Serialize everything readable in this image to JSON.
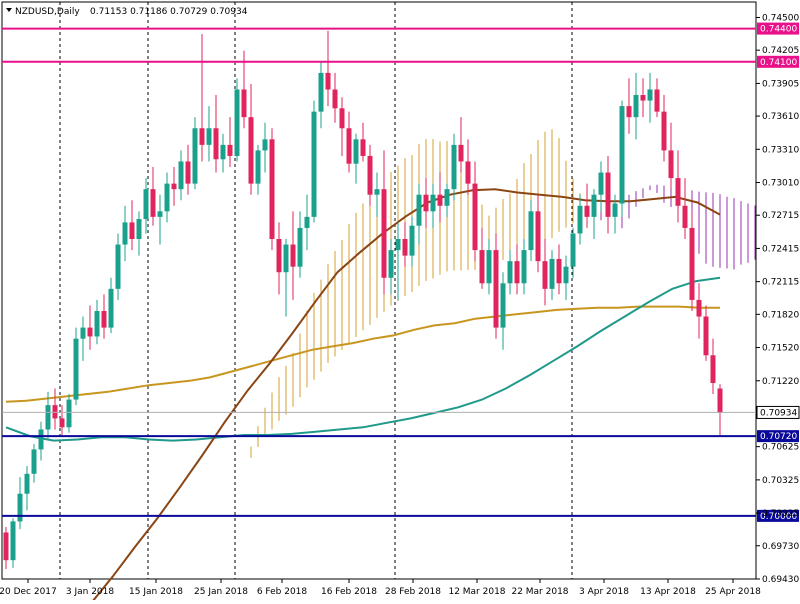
{
  "header": {
    "symbol_label": "NZDUSD,Daily",
    "ohlc": "0.71153 0.71186 0.70729 0.70934"
  },
  "colors": {
    "bull_candle": "#1aa08c",
    "bear_candle": "#e0245e",
    "ma_slow": "#c8961e",
    "ma_mid": "#1f9a8a",
    "ma_fast": "#8b4513",
    "cloud_a": "#d2a030",
    "cloud_b": "#9a30b0",
    "hline_magenta": "#e8118a",
    "hline_blue": "#0a0a9a",
    "price_label_bg": "#ffffff"
  },
  "chart_data": {
    "type": "candlestick",
    "title": "NZDUSD,Daily",
    "y_ticks": [
      "0.74500",
      "0.74205",
      "0.73905",
      "0.73610",
      "0.73310",
      "0.73010",
      "0.72715",
      "0.72415",
      "0.72115",
      "0.71820",
      "0.71520",
      "0.71220",
      "0.70625",
      "0.70325",
      "0.70025",
      "0.69730",
      "0.69430"
    ],
    "x_ticks": [
      "20 Dec 2017",
      "3 Jan 2018",
      "15 Jan 2018",
      "25 Jan 2018",
      "6 Feb 2018",
      "16 Feb 2018",
      "28 Feb 2018",
      "12 Mar 2018",
      "22 Mar 2018",
      "3 Apr 2018",
      "13 Apr 2018",
      "25 Apr 2018"
    ],
    "ylim": [
      0.6943,
      0.7464
    ],
    "horizontal_lines": [
      {
        "value": 0.744,
        "label": "0.74400",
        "color": "magenta"
      },
      {
        "value": 0.741,
        "label": "0.74100",
        "color": "magenta"
      },
      {
        "value": 0.7072,
        "label": "0.70720",
        "color": "blue"
      },
      {
        "value": 0.7,
        "label": "0.70000",
        "color": "blue"
      }
    ],
    "current_price": {
      "value": 0.70934,
      "label": "0.70934"
    },
    "candles": [
      {
        "o": 0.6985,
        "h": 0.699,
        "l": 0.6952,
        "c": 0.696
      },
      {
        "o": 0.696,
        "h": 0.6998,
        "l": 0.6953,
        "c": 0.6995
      },
      {
        "o": 0.6995,
        "h": 0.7035,
        "l": 0.6988,
        "c": 0.702
      },
      {
        "o": 0.702,
        "h": 0.7045,
        "l": 0.7005,
        "c": 0.7038
      },
      {
        "o": 0.7038,
        "h": 0.7065,
        "l": 0.703,
        "c": 0.706
      },
      {
        "o": 0.706,
        "h": 0.7085,
        "l": 0.705,
        "c": 0.7078
      },
      {
        "o": 0.7078,
        "h": 0.7112,
        "l": 0.707,
        "c": 0.71
      },
      {
        "o": 0.71,
        "h": 0.7115,
        "l": 0.7078,
        "c": 0.7088
      },
      {
        "o": 0.7088,
        "h": 0.71,
        "l": 0.7072,
        "c": 0.708
      },
      {
        "o": 0.708,
        "h": 0.711,
        "l": 0.7075,
        "c": 0.7105
      },
      {
        "o": 0.7105,
        "h": 0.717,
        "l": 0.71,
        "c": 0.716
      },
      {
        "o": 0.716,
        "h": 0.718,
        "l": 0.714,
        "c": 0.717
      },
      {
        "o": 0.717,
        "h": 0.719,
        "l": 0.715,
        "c": 0.7162
      },
      {
        "o": 0.7162,
        "h": 0.7195,
        "l": 0.7155,
        "c": 0.7185
      },
      {
        "o": 0.7185,
        "h": 0.72,
        "l": 0.716,
        "c": 0.717
      },
      {
        "o": 0.717,
        "h": 0.7215,
        "l": 0.7165,
        "c": 0.7205
      },
      {
        "o": 0.7205,
        "h": 0.7255,
        "l": 0.7195,
        "c": 0.7245
      },
      {
        "o": 0.7245,
        "h": 0.728,
        "l": 0.723,
        "c": 0.7265
      },
      {
        "o": 0.7265,
        "h": 0.7285,
        "l": 0.724,
        "c": 0.725
      },
      {
        "o": 0.725,
        "h": 0.7275,
        "l": 0.7235,
        "c": 0.7268
      },
      {
        "o": 0.7268,
        "h": 0.7305,
        "l": 0.7255,
        "c": 0.7295
      },
      {
        "o": 0.7295,
        "h": 0.7315,
        "l": 0.7262,
        "c": 0.727
      },
      {
        "o": 0.727,
        "h": 0.729,
        "l": 0.7245,
        "c": 0.7275
      },
      {
        "o": 0.7275,
        "h": 0.731,
        "l": 0.7265,
        "c": 0.73
      },
      {
        "o": 0.73,
        "h": 0.7315,
        "l": 0.728,
        "c": 0.7295
      },
      {
        "o": 0.7295,
        "h": 0.733,
        "l": 0.7285,
        "c": 0.732
      },
      {
        "o": 0.732,
        "h": 0.7335,
        "l": 0.729,
        "c": 0.73
      },
      {
        "o": 0.73,
        "h": 0.736,
        "l": 0.7295,
        "c": 0.735
      },
      {
        "o": 0.735,
        "h": 0.7435,
        "l": 0.732,
        "c": 0.7335
      },
      {
        "o": 0.7335,
        "h": 0.737,
        "l": 0.732,
        "c": 0.735
      },
      {
        "o": 0.735,
        "h": 0.738,
        "l": 0.731,
        "c": 0.7322
      },
      {
        "o": 0.7322,
        "h": 0.7345,
        "l": 0.731,
        "c": 0.7335
      },
      {
        "o": 0.7335,
        "h": 0.736,
        "l": 0.7315,
        "c": 0.7325
      },
      {
        "o": 0.7325,
        "h": 0.7395,
        "l": 0.732,
        "c": 0.7385
      },
      {
        "o": 0.7385,
        "h": 0.742,
        "l": 0.735,
        "c": 0.736
      },
      {
        "o": 0.736,
        "h": 0.739,
        "l": 0.729,
        "c": 0.73
      },
      {
        "o": 0.73,
        "h": 0.7335,
        "l": 0.729,
        "c": 0.733
      },
      {
        "o": 0.733,
        "h": 0.7355,
        "l": 0.731,
        "c": 0.734
      },
      {
        "o": 0.734,
        "h": 0.735,
        "l": 0.724,
        "c": 0.725
      },
      {
        "o": 0.725,
        "h": 0.7265,
        "l": 0.72,
        "c": 0.722
      },
      {
        "o": 0.722,
        "h": 0.725,
        "l": 0.718,
        "c": 0.7245
      },
      {
        "o": 0.7245,
        "h": 0.7275,
        "l": 0.7195,
        "c": 0.7225
      },
      {
        "o": 0.7225,
        "h": 0.7275,
        "l": 0.7215,
        "c": 0.726
      },
      {
        "o": 0.726,
        "h": 0.729,
        "l": 0.724,
        "c": 0.727
      },
      {
        "o": 0.727,
        "h": 0.7375,
        "l": 0.7265,
        "c": 0.7365
      },
      {
        "o": 0.7365,
        "h": 0.741,
        "l": 0.735,
        "c": 0.74
      },
      {
        "o": 0.74,
        "h": 0.7438,
        "l": 0.737,
        "c": 0.7385
      },
      {
        "o": 0.7385,
        "h": 0.74,
        "l": 0.7355,
        "c": 0.7368
      },
      {
        "o": 0.7368,
        "h": 0.7378,
        "l": 0.7325,
        "c": 0.735
      },
      {
        "o": 0.735,
        "h": 0.7365,
        "l": 0.731,
        "c": 0.7318
      },
      {
        "o": 0.7318,
        "h": 0.7345,
        "l": 0.73,
        "c": 0.734
      },
      {
        "o": 0.734,
        "h": 0.7355,
        "l": 0.732,
        "c": 0.7325
      },
      {
        "o": 0.7325,
        "h": 0.7335,
        "l": 0.728,
        "c": 0.729
      },
      {
        "o": 0.729,
        "h": 0.731,
        "l": 0.727,
        "c": 0.7295
      },
      {
        "o": 0.7295,
        "h": 0.733,
        "l": 0.72,
        "c": 0.7215
      },
      {
        "o": 0.7215,
        "h": 0.725,
        "l": 0.72,
        "c": 0.724
      },
      {
        "o": 0.724,
        "h": 0.7265,
        "l": 0.7195,
        "c": 0.725
      },
      {
        "o": 0.725,
        "h": 0.7265,
        "l": 0.7225,
        "c": 0.7235
      },
      {
        "o": 0.7235,
        "h": 0.727,
        "l": 0.7225,
        "c": 0.7262
      },
      {
        "o": 0.7262,
        "h": 0.73,
        "l": 0.7245,
        "c": 0.729
      },
      {
        "o": 0.729,
        "h": 0.7305,
        "l": 0.726,
        "c": 0.7275
      },
      {
        "o": 0.7275,
        "h": 0.73,
        "l": 0.726,
        "c": 0.729
      },
      {
        "o": 0.729,
        "h": 0.731,
        "l": 0.7265,
        "c": 0.728
      },
      {
        "o": 0.728,
        "h": 0.73,
        "l": 0.727,
        "c": 0.7295
      },
      {
        "o": 0.7295,
        "h": 0.7345,
        "l": 0.7285,
        "c": 0.7335
      },
      {
        "o": 0.7335,
        "h": 0.736,
        "l": 0.731,
        "c": 0.732
      },
      {
        "o": 0.732,
        "h": 0.734,
        "l": 0.729,
        "c": 0.73
      },
      {
        "o": 0.73,
        "h": 0.732,
        "l": 0.723,
        "c": 0.724
      },
      {
        "o": 0.724,
        "h": 0.726,
        "l": 0.7205,
        "c": 0.721
      },
      {
        "o": 0.721,
        "h": 0.725,
        "l": 0.72,
        "c": 0.724
      },
      {
        "o": 0.724,
        "h": 0.7255,
        "l": 0.716,
        "c": 0.717
      },
      {
        "o": 0.717,
        "h": 0.722,
        "l": 0.715,
        "c": 0.721
      },
      {
        "o": 0.721,
        "h": 0.724,
        "l": 0.72,
        "c": 0.723
      },
      {
        "o": 0.723,
        "h": 0.7245,
        "l": 0.72,
        "c": 0.721
      },
      {
        "o": 0.721,
        "h": 0.725,
        "l": 0.72,
        "c": 0.724
      },
      {
        "o": 0.724,
        "h": 0.7285,
        "l": 0.723,
        "c": 0.7275
      },
      {
        "o": 0.7275,
        "h": 0.729,
        "l": 0.722,
        "c": 0.723
      },
      {
        "o": 0.723,
        "h": 0.725,
        "l": 0.719,
        "c": 0.7205
      },
      {
        "o": 0.7205,
        "h": 0.724,
        "l": 0.7195,
        "c": 0.7232
      },
      {
        "o": 0.7232,
        "h": 0.7245,
        "l": 0.72,
        "c": 0.721
      },
      {
        "o": 0.721,
        "h": 0.7235,
        "l": 0.7195,
        "c": 0.7225
      },
      {
        "o": 0.7225,
        "h": 0.726,
        "l": 0.7215,
        "c": 0.7255
      },
      {
        "o": 0.7255,
        "h": 0.729,
        "l": 0.7245,
        "c": 0.728
      },
      {
        "o": 0.728,
        "h": 0.73,
        "l": 0.726,
        "c": 0.727
      },
      {
        "o": 0.727,
        "h": 0.7295,
        "l": 0.725,
        "c": 0.729
      },
      {
        "o": 0.729,
        "h": 0.732,
        "l": 0.7275,
        "c": 0.731
      },
      {
        "o": 0.731,
        "h": 0.7325,
        "l": 0.7255,
        "c": 0.727
      },
      {
        "o": 0.727,
        "h": 0.729,
        "l": 0.7255,
        "c": 0.7282
      },
      {
        "o": 0.7282,
        "h": 0.7375,
        "l": 0.727,
        "c": 0.737
      },
      {
        "o": 0.737,
        "h": 0.7395,
        "l": 0.7345,
        "c": 0.736
      },
      {
        "o": 0.736,
        "h": 0.74,
        "l": 0.734,
        "c": 0.738
      },
      {
        "o": 0.738,
        "h": 0.7395,
        "l": 0.736,
        "c": 0.7375
      },
      {
        "o": 0.7375,
        "h": 0.74,
        "l": 0.7355,
        "c": 0.7385
      },
      {
        "o": 0.7385,
        "h": 0.7395,
        "l": 0.736,
        "c": 0.7365
      },
      {
        "o": 0.7365,
        "h": 0.738,
        "l": 0.732,
        "c": 0.733
      },
      {
        "o": 0.733,
        "h": 0.7355,
        "l": 0.7295,
        "c": 0.7305
      },
      {
        "o": 0.7305,
        "h": 0.733,
        "l": 0.7265,
        "c": 0.728
      },
      {
        "o": 0.728,
        "h": 0.7305,
        "l": 0.725,
        "c": 0.726
      },
      {
        "o": 0.726,
        "h": 0.7275,
        "l": 0.7185,
        "c": 0.7195
      },
      {
        "o": 0.7195,
        "h": 0.721,
        "l": 0.716,
        "c": 0.718
      },
      {
        "o": 0.718,
        "h": 0.719,
        "l": 0.714,
        "c": 0.7145
      },
      {
        "o": 0.7145,
        "h": 0.716,
        "l": 0.711,
        "c": 0.712
      },
      {
        "o": 0.7115,
        "h": 0.7119,
        "l": 0.7073,
        "c": 0.7093
      }
    ],
    "indicators": {
      "ma_slow": [
        0.7103,
        0.7104,
        0.7106,
        0.7108,
        0.711,
        0.7112,
        0.7115,
        0.7118,
        0.712,
        0.7122,
        0.7125,
        0.713,
        0.7135,
        0.714,
        0.7145,
        0.715,
        0.7153,
        0.7156,
        0.716,
        0.7163,
        0.7168,
        0.7172,
        0.7174,
        0.7178,
        0.718,
        0.7182,
        0.7184,
        0.7186,
        0.7187,
        0.7188,
        0.7188,
        0.7189,
        0.7189,
        0.7189,
        0.7188,
        0.7188
      ],
      "ma_mid": [
        0.708,
        0.7072,
        0.7068,
        0.7069,
        0.7071,
        0.7071,
        0.7069,
        0.7068,
        0.7069,
        0.7071,
        0.7073,
        0.7073,
        0.7074,
        0.7076,
        0.7078,
        0.708,
        0.7084,
        0.7088,
        0.7093,
        0.7098,
        0.7105,
        0.7115,
        0.7127,
        0.714,
        0.7153,
        0.7167,
        0.718,
        0.7193,
        0.7205,
        0.7212,
        0.7215
      ],
      "ma_fast": [
        0.692,
        0.6945,
        0.6972,
        0.6998,
        0.7026,
        0.7055,
        0.7085,
        0.7113,
        0.7138,
        0.7165,
        0.7193,
        0.722,
        0.7238,
        0.7255,
        0.727,
        0.7283,
        0.729,
        0.7294,
        0.7295,
        0.7292,
        0.729,
        0.7288,
        0.7285,
        0.7284,
        0.7284,
        0.7286,
        0.7288,
        0.7283,
        0.7272
      ]
    }
  }
}
